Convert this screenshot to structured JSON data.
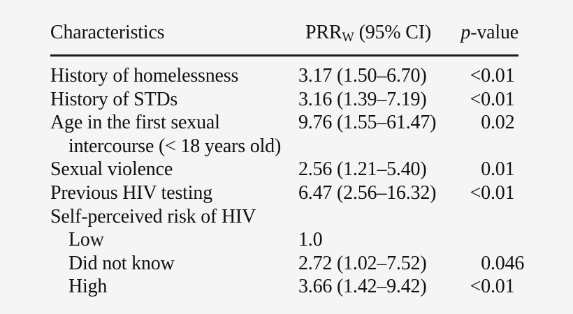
{
  "colors": {
    "background": "#f5f5f5",
    "text": "#111111",
    "rule": "#1c1c1c"
  },
  "table": {
    "header": {
      "characteristics": "Characteristics",
      "prr_main": "PRR",
      "prr_sub": "W",
      "prr_ci": " (95% CI)",
      "p_symbol": "p",
      "p_suffix": "-value"
    },
    "rows": [
      {
        "label": "History of homelessness",
        "prr": "3.17 (1.50–6.70)",
        "p_pre": "<0",
        "p_post": ".01"
      },
      {
        "label": "History of STDs",
        "prr": "3.16 (1.39–7.19)",
        "p_pre": "<0",
        "p_post": ".01"
      },
      {
        "label": "Age in the first sexual",
        "label_line2": "intercourse (< 18 years old)",
        "prr": "9.76 (1.55–61.47)",
        "p_pre": "0",
        "p_post": ".02"
      },
      {
        "label": "Sexual violence",
        "prr": "2.56 (1.21–5.40)",
        "p_pre": "0",
        "p_post": ".01"
      },
      {
        "label": "Previous HIV testing",
        "prr": "6.47 (2.56–16.32)",
        "p_pre": "<0",
        "p_post": ".01"
      },
      {
        "label": "Self-perceived risk of HIV",
        "prr": "",
        "p_pre": "",
        "p_post": ""
      },
      {
        "label": "Low",
        "prr": "1.0",
        "p_pre": "",
        "p_post": ""
      },
      {
        "label": "Did not know",
        "prr": "2.72 (1.02–7.52)",
        "p_pre": "0",
        "p_post": ".046"
      },
      {
        "label": "High",
        "prr": "3.66 (1.42–9.42)",
        "p_pre": "<0",
        "p_post": ".01"
      }
    ]
  }
}
